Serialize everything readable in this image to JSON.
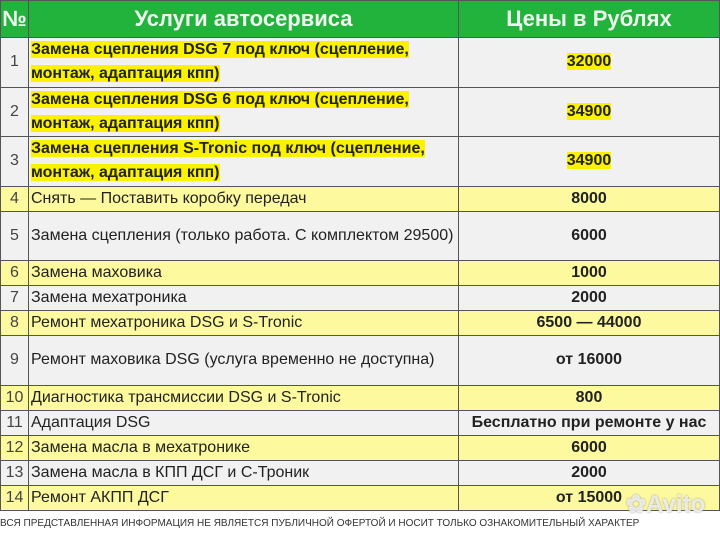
{
  "header": {
    "num": "№",
    "service": "Услуги автосервиса",
    "price": "Цены в Рублях"
  },
  "rows": [
    {
      "n": "1",
      "service": "Замена сцепления DSG 7 под ключ (сцепление, монтаж, адаптация кпп)",
      "price": "32000",
      "style": "h",
      "lines": 2
    },
    {
      "n": "2",
      "service": "Замена сцепления DSG 6 под ключ (сцепление, монтаж, адаптация кпп)",
      "price": "34900",
      "style": "h",
      "lines": 2
    },
    {
      "n": "3",
      "service": "Замена сцепления S-Tronic под ключ (сцепление, монтаж, адаптация кпп)",
      "price": "34900",
      "style": "h",
      "lines": 2
    },
    {
      "n": "4",
      "service": "Снять — Поставить коробку передач",
      "price": "8000",
      "style": "y",
      "lines": 1
    },
    {
      "n": "5",
      "service": "Замена сцепления (только работа. С комплектом 29500)",
      "price": "6000",
      "style": "g",
      "lines": 2
    },
    {
      "n": "6",
      "service": "Замена маховика",
      "price": "1000",
      "style": "y",
      "lines": 1
    },
    {
      "n": "7",
      "service": "Замена мехатроника",
      "price": "2000",
      "style": "g",
      "lines": 1
    },
    {
      "n": "8",
      "service": "Ремонт мехатроника DSG и S-Tronic",
      "price": "6500 — 44000",
      "style": "y",
      "lines": 1
    },
    {
      "n": "9",
      "service": "Ремонт маховика DSG (услуга временно не доступна)",
      "price": "от 16000",
      "style": "g",
      "lines": 2
    },
    {
      "n": "10",
      "service": "Диагностика трансмиссии DSG и S-Tronic",
      "price": "800",
      "style": "y",
      "lines": 1
    },
    {
      "n": "11",
      "service": "Адаптация DSG",
      "price": "Бесплатно при ремонте у нас",
      "style": "g",
      "lines": 1
    },
    {
      "n": "12",
      "service": "Замена масла в мехатронике",
      "price": "6000",
      "style": "y",
      "lines": 1
    },
    {
      "n": "13",
      "service": "Замена масла в КПП ДСГ и С-Троник",
      "price": "2000",
      "style": "g",
      "lines": 1
    },
    {
      "n": "14",
      "service": "Ремонт АКПП ДСГ",
      "price": "от 15000",
      "style": "y",
      "lines": 1
    }
  ],
  "footer": "ВСЯ ПРЕДСТАВЛЕННАЯ ИНФОРМАЦИЯ НЕ ЯВЛЯЕТСЯ ПУБЛИЧНОЙ ОФЕРТОЙ И НОСИТ ТОЛЬКО ОЗНАКОМИТЕЛЬНЫЙ ХАРАКТЕР",
  "watermark": "Avito",
  "colors": {
    "header": "#21b33b",
    "highlight": "#fdf99e",
    "marker": "#fbf200"
  }
}
